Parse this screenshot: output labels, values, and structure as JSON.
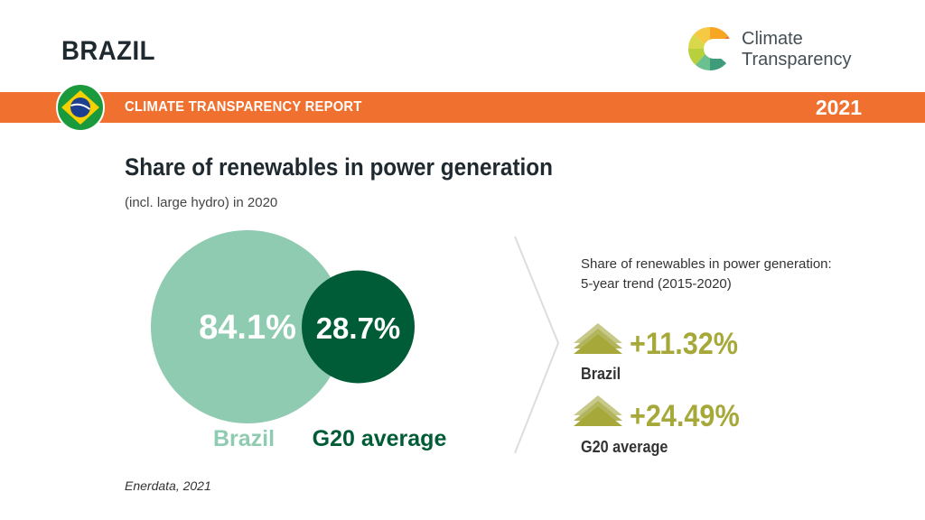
{
  "header": {
    "country": "BRAZIL",
    "brand_line1": "Climate",
    "brand_line2": "Transparency",
    "report_label": "CLIMATE TRANSPARENCY REPORT",
    "year": "2021"
  },
  "colors": {
    "banner": "#f07030",
    "brazil": "#8ecbb0",
    "g20": "#005c36",
    "trend": "#a6a93a"
  },
  "chart_data": {
    "type": "bubble",
    "title": "Share of renewables in power generation",
    "subtitle": "(incl. large hydro) in 2020",
    "series": [
      {
        "name": "Brazil",
        "value": 84.1,
        "label": "84.1%",
        "color": "#8ecbb0"
      },
      {
        "name": "G20 average",
        "value": 28.7,
        "label": "28.7%",
        "color": "#005c36"
      }
    ]
  },
  "trend": {
    "heading_line1": "Share of renewables in power generation:",
    "heading_line2": "5-year trend (2015-2020)",
    "items": [
      {
        "label": "Brazil",
        "value": "+11.32%",
        "direction": "up-arrow-icon"
      },
      {
        "label": "G20 average",
        "value": "+24.49%",
        "direction": "up-arrow-icon"
      }
    ]
  },
  "source": "Enerdata, 2021"
}
